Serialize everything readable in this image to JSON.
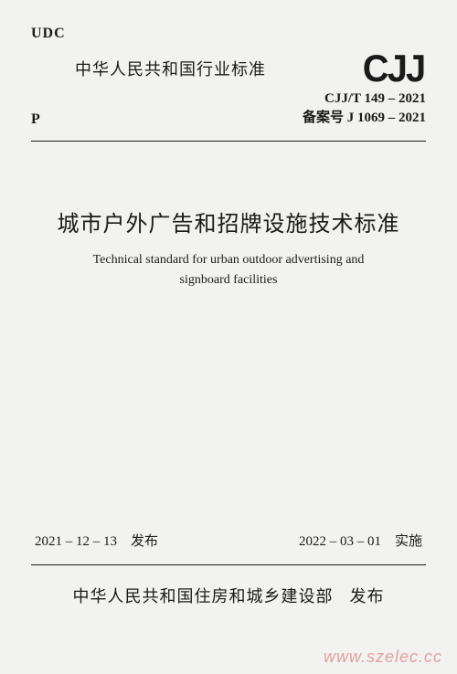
{
  "header": {
    "udc": "UDC",
    "standard_label": "中华人民共和国行业标准",
    "logo_text": "CJJ",
    "code_line1": "CJJ/T 149 – 2021",
    "code_line2": "备案号 J 1069 – 2021",
    "p_label": "P"
  },
  "title": {
    "cn": "城市户外广告和招牌设施技术标准",
    "en_line1": "Technical standard for urban outdoor advertising and",
    "en_line2": "signboard facilities"
  },
  "dates": {
    "issued": "2021 – 12 – 13　发布",
    "effective": "2022 – 03 – 01　实施"
  },
  "publisher": {
    "org": "中华人民共和国住房和城乡建设部",
    "action": "发布"
  },
  "watermark": "www.szelec.cc"
}
